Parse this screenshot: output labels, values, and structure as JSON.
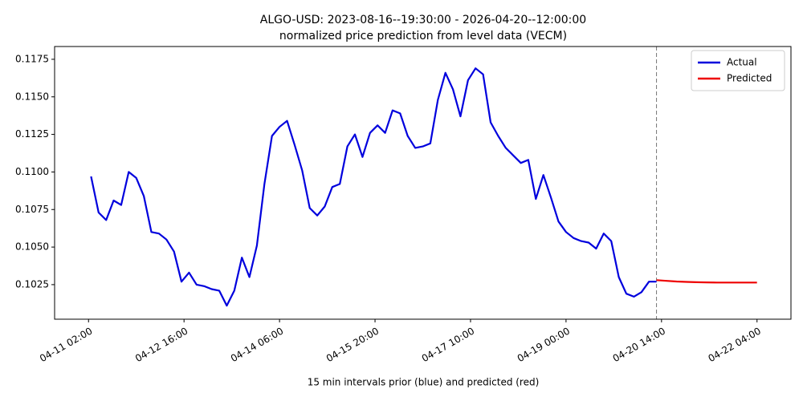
{
  "chart_data": {
    "type": "line",
    "title": "ALGO-USD: 2023-08-16--19:30:00 - 2026-04-20--12:00:00",
    "subtitle": "normalized price prediction from level data (VECM)",
    "x_label": "15 min intervals prior (blue) and predicted (red)",
    "xlim": [
      "04-10 12:30",
      "04-22 17:30"
    ],
    "xticks": [
      "04-11 02:00",
      "04-12 16:00",
      "04-14 06:00",
      "04-15 20:00",
      "04-17 10:00",
      "04-19 00:00",
      "04-20 14:00",
      "04-22 04:00"
    ],
    "ylim": [
      0.1002,
      0.11835
    ],
    "yticks": [
      0.1025,
      {
        "value": 0.105,
        "label": "0.1050"
      },
      0.1075,
      {
        "value": 0.11,
        "label": "0.1100"
      },
      0.1125,
      {
        "value": 0.115,
        "label": "0.1150"
      },
      0.1175
    ],
    "vline": "04-20 12:00",
    "legend": "upper right",
    "series": [
      {
        "name": "Actual",
        "color": "#0000dd",
        "x": [
          "04-11 03:00",
          "04-11 06:00",
          "04-11 09:00",
          "04-11 12:00",
          "04-11 15:00",
          "04-11 18:00",
          "04-11 21:00",
          "04-12 00:00",
          "04-12 03:00",
          "04-12 06:00",
          "04-12 09:00",
          "04-12 12:00",
          "04-12 15:00",
          "04-12 18:00",
          "04-12 21:00",
          "04-13 00:00",
          "04-13 03:00",
          "04-13 06:00",
          "04-13 09:00",
          "04-13 12:00",
          "04-13 15:00",
          "04-13 18:00",
          "04-13 21:00",
          "04-14 00:00",
          "04-14 03:00",
          "04-14 06:00",
          "04-14 09:00",
          "04-14 12:00",
          "04-14 15:00",
          "04-14 18:00",
          "04-14 21:00",
          "04-15 00:00",
          "04-15 03:00",
          "04-15 06:00",
          "04-15 09:00",
          "04-15 12:00",
          "04-15 15:00",
          "04-15 18:00",
          "04-15 21:00",
          "04-16 00:00",
          "04-16 03:00",
          "04-16 06:00",
          "04-16 09:00",
          "04-16 12:00",
          "04-16 15:00",
          "04-16 18:00",
          "04-16 21:00",
          "04-17 00:00",
          "04-17 03:00",
          "04-17 06:00",
          "04-17 09:00",
          "04-17 12:00",
          "04-17 15:00",
          "04-17 18:00",
          "04-17 21:00",
          "04-18 00:00",
          "04-18 03:00",
          "04-18 06:00",
          "04-18 09:00",
          "04-18 12:00",
          "04-18 15:00",
          "04-18 18:00",
          "04-18 21:00",
          "04-19 00:00",
          "04-19 03:00",
          "04-19 06:00",
          "04-19 09:00",
          "04-19 12:00",
          "04-19 15:00",
          "04-19 18:00",
          "04-19 21:00",
          "04-20 00:00",
          "04-20 03:00",
          "04-20 06:00",
          "04-20 09:00",
          "04-20 12:00"
        ],
        "values": [
          0.1097,
          0.1073,
          0.1068,
          0.1081,
          0.1078,
          0.11,
          0.1096,
          0.1084,
          0.106,
          0.1059,
          0.1055,
          0.1047,
          0.1027,
          0.1033,
          0.1025,
          0.1024,
          0.1022,
          0.1021,
          0.1011,
          0.1021,
          0.1043,
          0.103,
          0.1051,
          0.1092,
          0.1124,
          0.113,
          0.1134,
          0.1118,
          0.1101,
          0.1076,
          0.1071,
          0.1077,
          0.109,
          0.1092,
          0.1117,
          0.1125,
          0.111,
          0.1126,
          0.1131,
          0.1126,
          0.1141,
          0.1139,
          0.1124,
          0.1116,
          0.1117,
          0.1119,
          0.1148,
          0.1166,
          0.1155,
          0.1137,
          0.1161,
          0.1169,
          0.1165,
          0.1133,
          0.1124,
          0.1116,
          0.1111,
          0.1106,
          0.1108,
          0.1082,
          0.1098,
          0.1083,
          0.1067,
          0.106,
          0.1056,
          0.1054,
          0.1053,
          0.1049,
          0.1059,
          0.1054,
          0.103,
          0.1019,
          0.1017,
          0.102,
          0.1027,
          0.1027
        ]
      },
      {
        "name": "Predicted",
        "color": "#ee0000",
        "x": [
          "04-20 12:00",
          "04-20 16:00",
          "04-20 20:00",
          "04-21 00:00",
          "04-21 04:00",
          "04-21 08:00",
          "04-21 12:00",
          "04-21 16:00",
          "04-21 20:00",
          "04-22 00:00",
          "04-22 04:00"
        ],
        "values": [
          0.1028,
          0.10275,
          0.10271,
          0.10268,
          0.10266,
          0.10265,
          0.10264,
          0.10264,
          0.10264,
          0.10264,
          0.10264
        ]
      }
    ]
  }
}
